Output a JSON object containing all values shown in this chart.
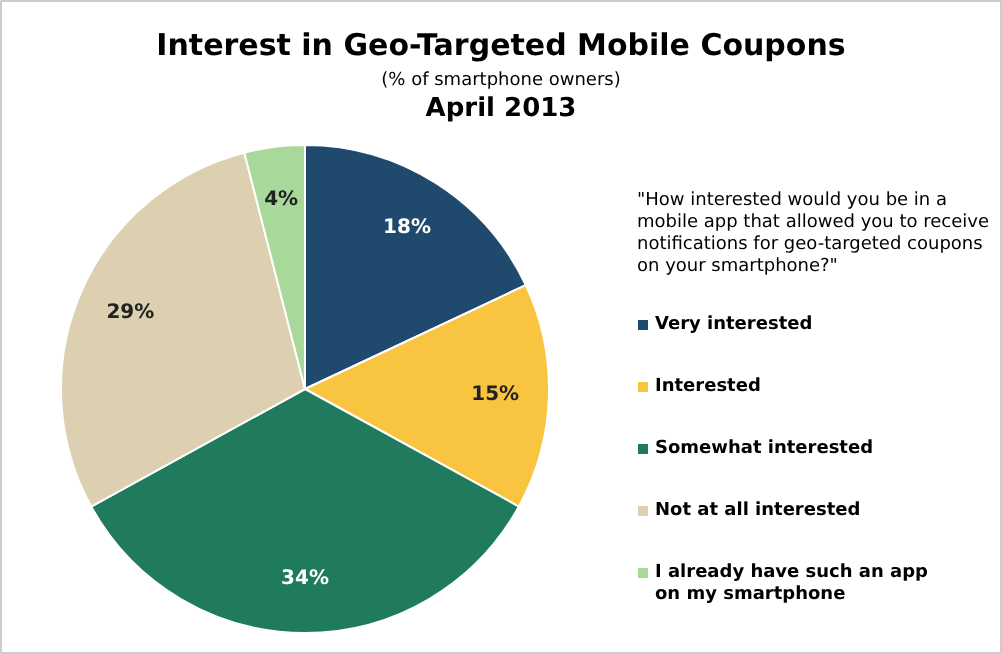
{
  "chart_data": {
    "type": "pie",
    "title": "Interest in Geo-Targeted Mobile Coupons",
    "subtitle": "(% of smartphone owners)",
    "annotations": [
      "April 2013"
    ],
    "legend_title": "\"How interested would you be in a mobile app that allowed you to receive notifications for geo-targeted coupons on your smartphone?\"",
    "categories": [
      "Very interested",
      "Interested",
      "Somewhat interested",
      "Not at all interested",
      "I already have such an app on my smartphone"
    ],
    "values": [
      18,
      15,
      34,
      29,
      4
    ],
    "colors": [
      "#1f4a6e",
      "#f9c440",
      "#1f7a5e",
      "#ddd0b0",
      "#a8d89a"
    ],
    "value_labels": [
      "18%",
      "15%",
      "34%",
      "29%",
      "4%"
    ],
    "legend": "right"
  }
}
